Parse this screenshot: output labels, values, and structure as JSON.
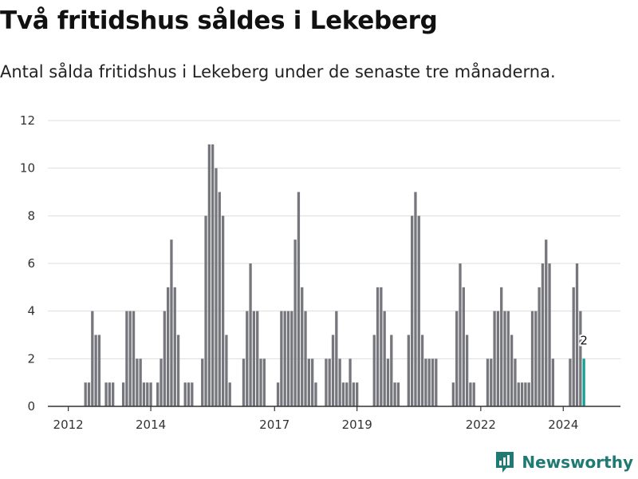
{
  "title": "Två fritidshus såldes i Lekeberg",
  "subtitle": "Antal sålda fritidshus i Lekeberg under de senaste tre månaderna.",
  "brand": "Newsworthy",
  "colors": {
    "bar": "#76767d",
    "highlight": "#16a094",
    "brand": "#1f7a73"
  },
  "chart_data": {
    "type": "bar",
    "title": "Två fritidshus såldes i Lekeberg",
    "subtitle": "Antal sålda fritidshus i Lekeberg under de senaste tre månaderna.",
    "xlabel": "",
    "ylabel": "",
    "ylim": [
      0,
      12
    ],
    "yticks": [
      0,
      2,
      4,
      6,
      8,
      10,
      12
    ],
    "xticks": [
      "2012",
      "2014",
      "2017",
      "2019",
      "2022",
      "2024"
    ],
    "grid": true,
    "start": "2012-01",
    "frequency": "monthly",
    "values": [
      0,
      0,
      0,
      0,
      0,
      1,
      1,
      4,
      3,
      3,
      0,
      1,
      1,
      1,
      0,
      0,
      1,
      4,
      4,
      4,
      2,
      2,
      1,
      1,
      1,
      0,
      1,
      2,
      4,
      5,
      7,
      5,
      3,
      0,
      1,
      1,
      1,
      0,
      0,
      2,
      8,
      11,
      11,
      10,
      9,
      8,
      3,
      1,
      0,
      0,
      0,
      2,
      4,
      6,
      4,
      4,
      2,
      2,
      0,
      0,
      0,
      1,
      4,
      4,
      4,
      4,
      7,
      9,
      5,
      4,
      2,
      2,
      1,
      0,
      0,
      2,
      2,
      3,
      4,
      2,
      1,
      1,
      2,
      1,
      1,
      0,
      0,
      0,
      0,
      3,
      5,
      5,
      4,
      2,
      3,
      1,
      1,
      0,
      0,
      3,
      8,
      9,
      8,
      3,
      2,
      2,
      2,
      2,
      0,
      0,
      0,
      0,
      1,
      4,
      6,
      5,
      3,
      1,
      1,
      0,
      0,
      0,
      2,
      2,
      4,
      4,
      5,
      4,
      4,
      3,
      2,
      1,
      1,
      1,
      1,
      4,
      4,
      5,
      6,
      7,
      6,
      2,
      0,
      0,
      0,
      0,
      2,
      5,
      6,
      4,
      2
    ],
    "highlight_last": true,
    "annotations": [
      {
        "label": "2",
        "target": "last"
      }
    ]
  }
}
